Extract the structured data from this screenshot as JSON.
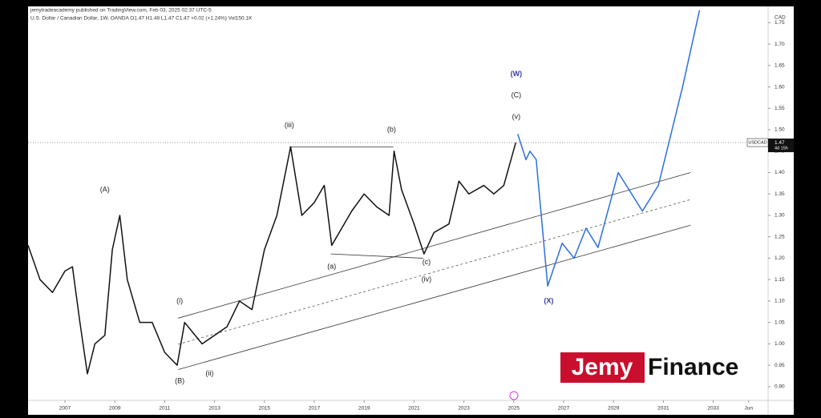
{
  "chart_data": {
    "type": "line",
    "header": "jemytradeacademy published on TradingView.com, Feb 03, 2025 02:37 UTC-5",
    "title": "U.S. Dollar / Canadian Dollar, 1W, OANDA  O1.47  H1.48  L1.47  C1.47  +0.02 (+1.24%)  Vol150.1K",
    "y_axis_label": "CAD",
    "xlim": [
      2005.52,
      2035.2
    ],
    "ylim": [
      0.868,
      1.788
    ],
    "xticks": [
      2007,
      2009,
      2011,
      2013,
      2015,
      2017,
      2019,
      2021,
      2023,
      2025,
      2027,
      2029,
      2031,
      2033,
      {
        "value": 2034.42,
        "label": "Jun"
      }
    ],
    "yticks": [
      {
        "value": 0.9,
        "label": "0.90"
      },
      0.95,
      {
        "value": 1.0,
        "label": "1.00"
      },
      1.05,
      {
        "value": 1.1,
        "label": "1.10"
      },
      1.15,
      {
        "value": 1.2,
        "label": "1.20"
      },
      1.25,
      {
        "value": 1.3,
        "label": "1.30"
      },
      1.35,
      {
        "value": 1.4,
        "label": "1.40"
      },
      1.45,
      {
        "value": 1.5,
        "label": "1.50"
      },
      1.55,
      {
        "value": 1.6,
        "label": "1.60"
      },
      1.65,
      {
        "value": 1.7,
        "label": "1.70"
      },
      1.75
    ],
    "series": [
      {
        "name": "USDCAD",
        "color": "#111111",
        "x": [
          2005.52,
          2006.0,
          2006.5,
          2007.0,
          2007.3,
          2007.6,
          2007.9,
          2008.2,
          2008.6,
          2008.9,
          2009.2,
          2009.5,
          2010.0,
          2010.5,
          2011.0,
          2011.5,
          2011.8,
          2012.5,
          2013.0,
          2013.5,
          2014.0,
          2014.5,
          2015.0,
          2015.5,
          2016.05,
          2016.5,
          2017.0,
          2017.4,
          2017.7,
          2018.0,
          2018.5,
          2019.0,
          2019.5,
          2020.0,
          2020.2,
          2020.5,
          2021.0,
          2021.4,
          2021.8,
          2022.4,
          2022.8,
          2023.2,
          2023.8,
          2024.2,
          2024.6,
          2025.08
        ],
        "values": [
          1.23,
          1.15,
          1.12,
          1.17,
          1.18,
          1.05,
          0.93,
          1.0,
          1.02,
          1.22,
          1.3,
          1.15,
          1.05,
          1.05,
          0.98,
          0.95,
          1.05,
          1.0,
          1.02,
          1.04,
          1.1,
          1.08,
          1.22,
          1.3,
          1.46,
          1.3,
          1.33,
          1.37,
          1.23,
          1.26,
          1.31,
          1.35,
          1.32,
          1.3,
          1.45,
          1.36,
          1.28,
          1.21,
          1.26,
          1.28,
          1.38,
          1.35,
          1.37,
          1.35,
          1.37,
          1.47
        ]
      },
      {
        "color": "#2b6fe0",
        "x": [
          2025.16,
          2025.49,
          2025.65,
          2025.9,
          2026.36,
          2026.94,
          2027.42,
          2027.9,
          2028.38,
          2029.19,
          2030.16,
          2030.8,
          2031.77,
          2032.45
        ],
        "values": [
          1.49,
          1.43,
          1.45,
          1.43,
          1.135,
          1.235,
          1.2,
          1.27,
          1.225,
          1.4,
          1.31,
          1.37,
          1.6,
          1.779
        ]
      }
    ],
    "lines": [
      {
        "x": [
          2011.54,
          2032.09
        ],
        "values": [
          1.06,
          1.4
        ],
        "color": "#333333",
        "style": "solid"
      },
      {
        "x": [
          2011.54,
          2032.09
        ],
        "values": [
          0.999,
          1.337
        ],
        "color": "#555555",
        "style": "dashed"
      },
      {
        "x": [
          2011.54,
          2032.09
        ],
        "values": [
          0.94,
          1.277
        ],
        "color": "#333333",
        "style": "solid"
      },
      {
        "x": [
          2016.0,
          2020.17
        ],
        "values": [
          1.46,
          1.46
        ],
        "color": "#333333",
        "style": "solid"
      },
      {
        "x": [
          2017.66,
          2021.36
        ],
        "values": [
          1.21,
          1.2
        ],
        "color": "#333333",
        "style": "solid"
      }
    ],
    "annotations": [
      {
        "text": "(A)",
        "x": 2008.6,
        "y": 1.36,
        "color": "#222222"
      },
      {
        "text": "(B)",
        "x": 2011.6,
        "y": 0.913,
        "color": "#222222"
      },
      {
        "text": "(i)",
        "x": 2011.6,
        "y": 1.1,
        "color": "#222222"
      },
      {
        "text": "(ii)",
        "x": 2012.8,
        "y": 0.93,
        "color": "#222222"
      },
      {
        "text": "(iii)",
        "x": 2016.0,
        "y": 1.51,
        "color": "#222222"
      },
      {
        "text": "(a)",
        "x": 2017.7,
        "y": 1.18,
        "color": "#222222"
      },
      {
        "text": "(b)",
        "x": 2020.1,
        "y": 1.5,
        "color": "#222222"
      },
      {
        "text": "(c)",
        "x": 2021.5,
        "y": 1.19,
        "color": "#222222"
      },
      {
        "text": "(iv)",
        "x": 2021.5,
        "y": 1.15,
        "color": "#222222"
      },
      {
        "text": "(v)",
        "x": 2025.1,
        "y": 1.53,
        "color": "#222222"
      },
      {
        "text": "(C)",
        "x": 2025.1,
        "y": 1.58,
        "color": "#222222"
      },
      {
        "text": "(W)",
        "x": 2025.1,
        "y": 1.63,
        "color": "#3a3aa8"
      },
      {
        "text": "(X)",
        "x": 2026.4,
        "y": 1.1,
        "color": "#3a3aa8"
      }
    ],
    "last_price": {
      "symbol": "USDCAD",
      "value": 1.47,
      "countdown": "4d 15h"
    },
    "logo": {
      "part1": "Jemy",
      "part2": "Finance"
    }
  }
}
